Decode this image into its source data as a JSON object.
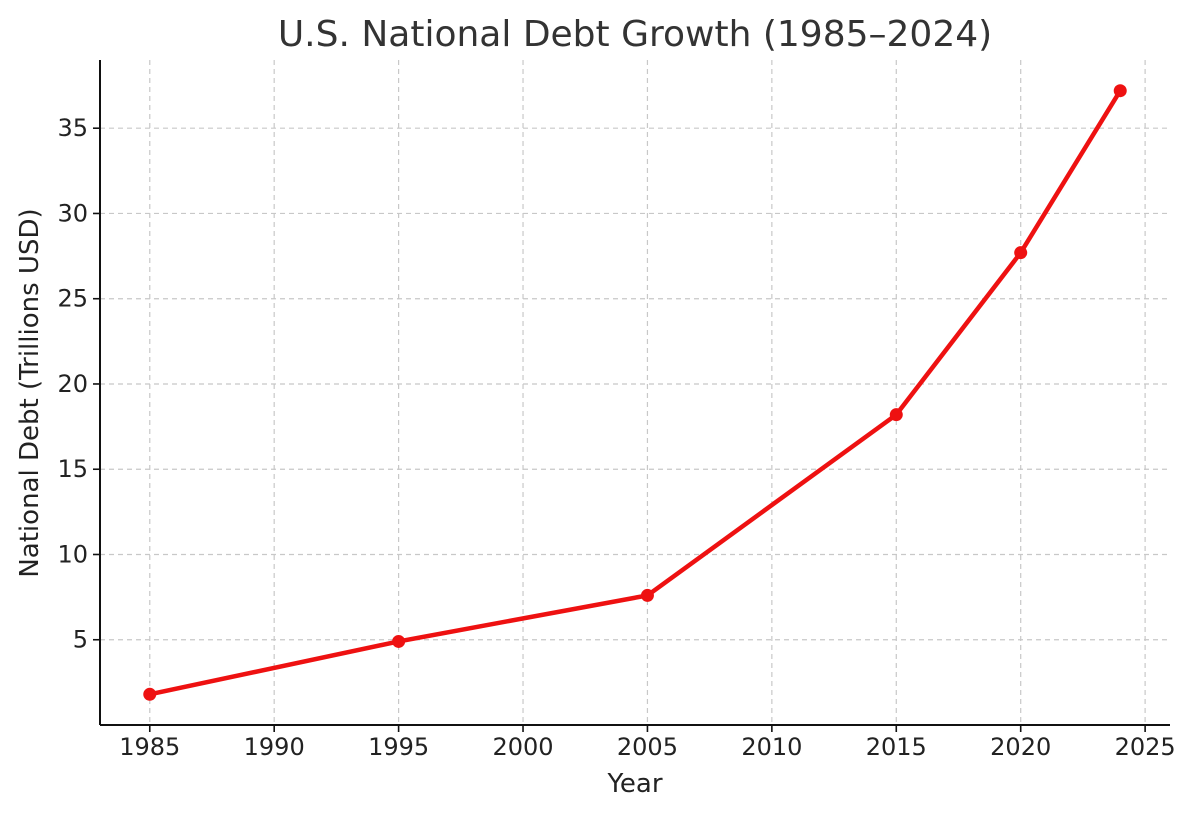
{
  "chart_data": {
    "type": "line",
    "title": "U.S. National Debt Growth (1985–2024)",
    "xlabel": "Year",
    "ylabel": "National Debt (Trillions USD)",
    "xlim": [
      1983,
      2026
    ],
    "ylim": [
      0,
      39
    ],
    "x_ticks": [
      1985,
      1990,
      1995,
      2000,
      2005,
      2010,
      2015,
      2020,
      2025
    ],
    "y_ticks": [
      5,
      10,
      15,
      20,
      25,
      30,
      35
    ],
    "grid": true,
    "x": [
      1985,
      1995,
      2005,
      2015,
      2020,
      2024
    ],
    "series": [
      {
        "values": [
          1.8,
          4.9,
          7.6,
          18.2,
          27.7,
          37.2
        ],
        "color": "#ee1111",
        "marker": "circle"
      }
    ]
  }
}
